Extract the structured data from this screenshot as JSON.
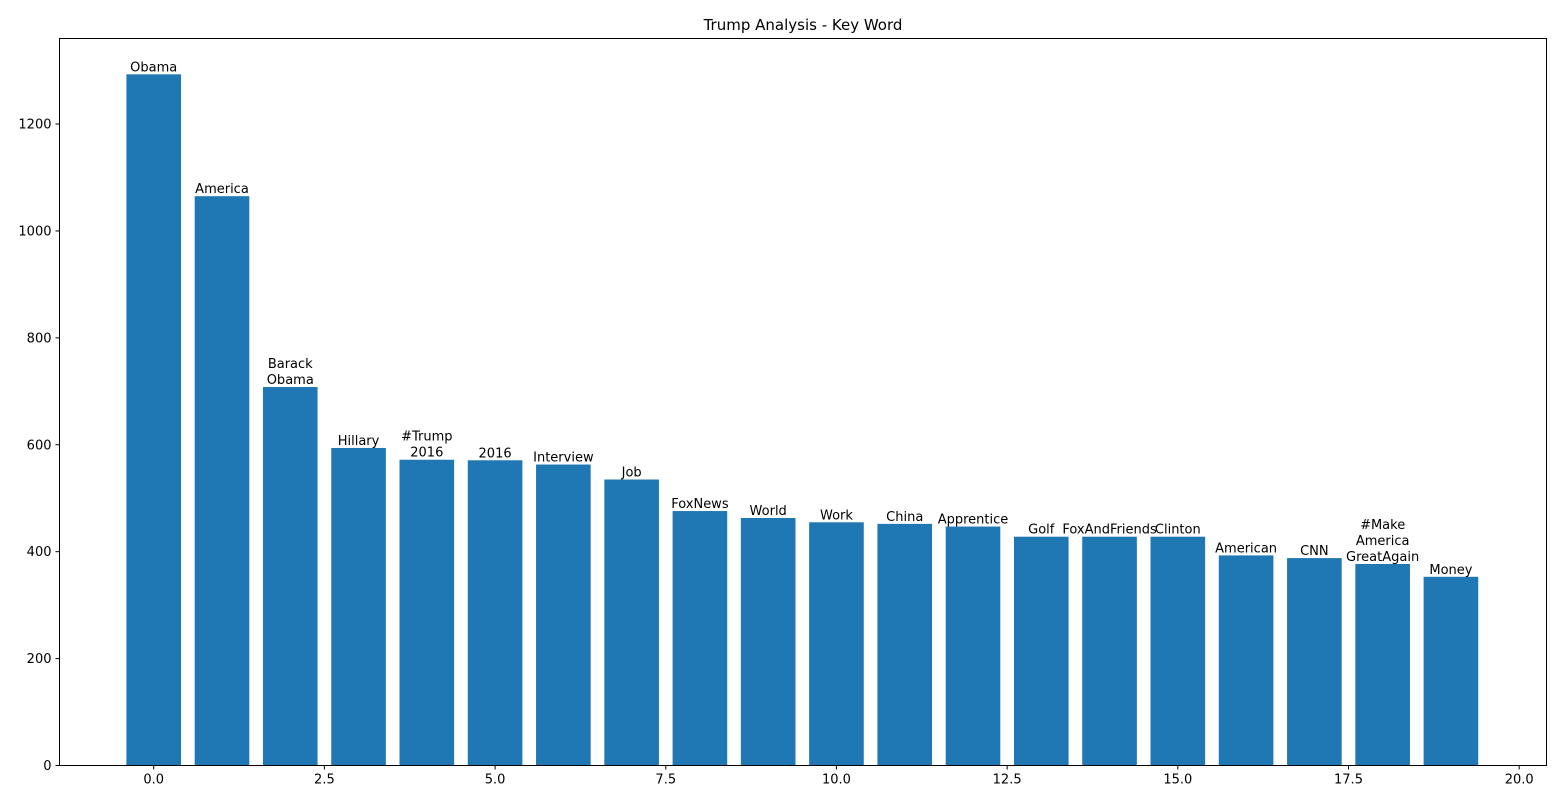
{
  "chart_data": {
    "type": "bar",
    "title": "Trump Analysis - Key Word",
    "xlabel": "",
    "ylabel": "",
    "xlim": [
      -1.38,
      20.4
    ],
    "ylim": [
      0,
      1360
    ],
    "x_ticks": [
      0.0,
      2.5,
      5.0,
      7.5,
      10.0,
      12.5,
      15.0,
      17.5,
      20.0
    ],
    "x_tick_labels": [
      "0.0",
      "2.5",
      "5.0",
      "7.5",
      "10.0",
      "12.5",
      "15.0",
      "17.5",
      "20.0"
    ],
    "y_ticks": [
      0,
      200,
      400,
      600,
      800,
      1000,
      1200
    ],
    "y_tick_labels": [
      "0",
      "200",
      "400",
      "600",
      "800",
      "1000",
      "1200"
    ],
    "bar_width": 0.8,
    "bar_color": "#1f77b4",
    "grid": false,
    "legend": "none",
    "x": [
      0,
      1,
      2,
      3,
      4,
      5,
      6,
      7,
      8,
      9,
      10,
      11,
      12,
      13,
      14,
      15,
      16,
      17,
      18,
      19
    ],
    "bar_labels": [
      [
        "Obama"
      ],
      [
        "America"
      ],
      [
        "Barack",
        "Obama"
      ],
      [
        "Hillary"
      ],
      [
        "#Trump",
        "2016"
      ],
      [
        "2016"
      ],
      [
        "Interview"
      ],
      [
        "Job"
      ],
      [
        "FoxNews"
      ],
      [
        "World"
      ],
      [
        "Work"
      ],
      [
        "China"
      ],
      [
        "Apprentice"
      ],
      [
        "Golf"
      ],
      [
        "FoxAndFriends"
      ],
      [
        "Clinton"
      ],
      [
        "American"
      ],
      [
        "CNN"
      ],
      [
        "#Make",
        "America",
        "GreatAgain"
      ],
      [
        "Money"
      ]
    ],
    "values": [
      1293,
      1065,
      708,
      594,
      572,
      571,
      563,
      535,
      476,
      463,
      455,
      452,
      447,
      428,
      428,
      428,
      393,
      388,
      377,
      353
    ]
  }
}
